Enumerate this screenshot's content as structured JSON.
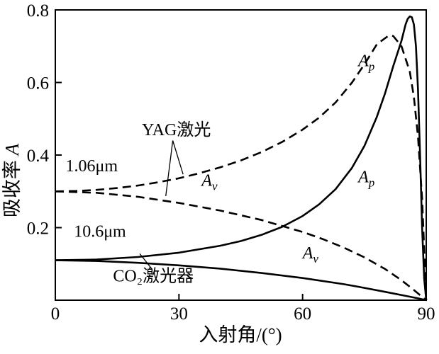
{
  "figure": {
    "background": "#ffffff",
    "axis_color": "#000000",
    "curve_color": "#000000"
  },
  "chart_data": {
    "type": "line",
    "title": "",
    "xlabel": "入射角/(°)",
    "ylabel_text": "吸收率",
    "ylabel_var": "A",
    "xlim": [
      0,
      90
    ],
    "ylim": [
      0,
      0.8
    ],
    "grid": false,
    "legend": "none (inline annotations)",
    "xticks": [
      {
        "value": 0,
        "label": "0"
      },
      {
        "value": 30,
        "label": "30"
      },
      {
        "value": 60,
        "label": "60"
      },
      {
        "value": 90,
        "label": "90"
      }
    ],
    "yticks": [
      {
        "value": 0.2,
        "label": "0.2"
      },
      {
        "value": 0.4,
        "label": "0.4"
      },
      {
        "value": 0.6,
        "label": "0.6"
      },
      {
        "value": 0.8,
        "label": "0.8"
      }
    ],
    "series": [
      {
        "id": "yag-ap",
        "name": "YAG 1.06μm Ap",
        "style": "dashed",
        "x": [
          0,
          5,
          10,
          15,
          20,
          25,
          30,
          35,
          40,
          45,
          50,
          55,
          60,
          64,
          68,
          72,
          75,
          78,
          80,
          81,
          82,
          84,
          86,
          87,
          88,
          89,
          90
        ],
        "y": [
          0.3,
          0.301,
          0.304,
          0.309,
          0.316,
          0.325,
          0.336,
          0.35,
          0.366,
          0.385,
          0.408,
          0.436,
          0.47,
          0.503,
          0.545,
          0.6,
          0.65,
          0.705,
          0.722,
          0.73,
          0.728,
          0.7,
          0.63,
          0.56,
          0.45,
          0.28,
          0.0
        ]
      },
      {
        "id": "yag-av",
        "name": "YAG 1.06μm Av",
        "style": "dashed",
        "x": [
          0,
          10,
          20,
          30,
          40,
          50,
          60,
          65,
          70,
          75,
          80,
          84,
          87,
          90
        ],
        "y": [
          0.3,
          0.296,
          0.285,
          0.268,
          0.247,
          0.221,
          0.188,
          0.168,
          0.145,
          0.118,
          0.086,
          0.055,
          0.028,
          0.0
        ]
      },
      {
        "id": "co2-ap",
        "name": "CO2 10.6μm Ap",
        "style": "solid",
        "x": [
          0,
          10,
          20,
          30,
          40,
          45,
          50,
          55,
          60,
          64,
          68,
          72,
          75,
          78,
          80,
          82,
          84,
          85,
          85.5,
          86,
          86.5,
          87,
          87.5,
          88,
          88.5,
          89,
          89.5,
          90
        ],
        "y": [
          0.11,
          0.112,
          0.119,
          0.131,
          0.15,
          0.163,
          0.18,
          0.202,
          0.232,
          0.264,
          0.306,
          0.365,
          0.425,
          0.505,
          0.57,
          0.645,
          0.715,
          0.76,
          0.775,
          0.782,
          0.78,
          0.76,
          0.7,
          0.58,
          0.4,
          0.2,
          0.06,
          0.0
        ]
      },
      {
        "id": "co2-av",
        "name": "CO2 10.6μm Av",
        "style": "solid",
        "x": [
          0,
          10,
          20,
          30,
          40,
          50,
          60,
          70,
          75,
          80,
          85,
          88,
          90
        ],
        "y": [
          0.11,
          0.108,
          0.103,
          0.096,
          0.087,
          0.075,
          0.061,
          0.044,
          0.034,
          0.023,
          0.012,
          0.005,
          0.0
        ]
      }
    ],
    "annotations": [
      {
        "id": "yag-label",
        "text": "YAG激光",
        "x": 21,
        "y": 0.455,
        "italic": false
      },
      {
        "id": "wavelength-1-06",
        "text": "1.06μm",
        "x": 2.5,
        "y": 0.355,
        "italic": false
      },
      {
        "id": "wavelength-10-6",
        "text": "10.6μm",
        "x": 4.5,
        "y": 0.175,
        "italic": false
      },
      {
        "id": "co2-label",
        "text": "CO₂激光器",
        "x": 14,
        "y": 0.052,
        "italic": false
      },
      {
        "id": "ap-dashed-label",
        "text": "A",
        "sub": "p",
        "x": 73.5,
        "y": 0.645,
        "italic": true
      },
      {
        "id": "ap-solid-label",
        "text": "A",
        "sub": "p",
        "x": 73.5,
        "y": 0.325,
        "italic": true
      },
      {
        "id": "av-dashed-label",
        "text": "A",
        "sub": "v",
        "x": 35.5,
        "y": 0.315,
        "italic": true
      },
      {
        "id": "av-solid-label",
        "text": "A",
        "sub": "v",
        "x": 60,
        "y": 0.115,
        "italic": true
      }
    ],
    "leader_lines": [
      {
        "id": "yag-to-ap-dashed",
        "from": [
          28.5,
          0.44
        ],
        "to": [
          31,
          0.347
        ]
      },
      {
        "id": "yag-to-av-dashed",
        "from": [
          28.5,
          0.44
        ],
        "to": [
          26.8,
          0.287
        ]
      },
      {
        "id": "co2-to-solid-curves",
        "from": [
          23.5,
          0.085
        ],
        "to": [
          20.5,
          0.128
        ]
      }
    ]
  }
}
